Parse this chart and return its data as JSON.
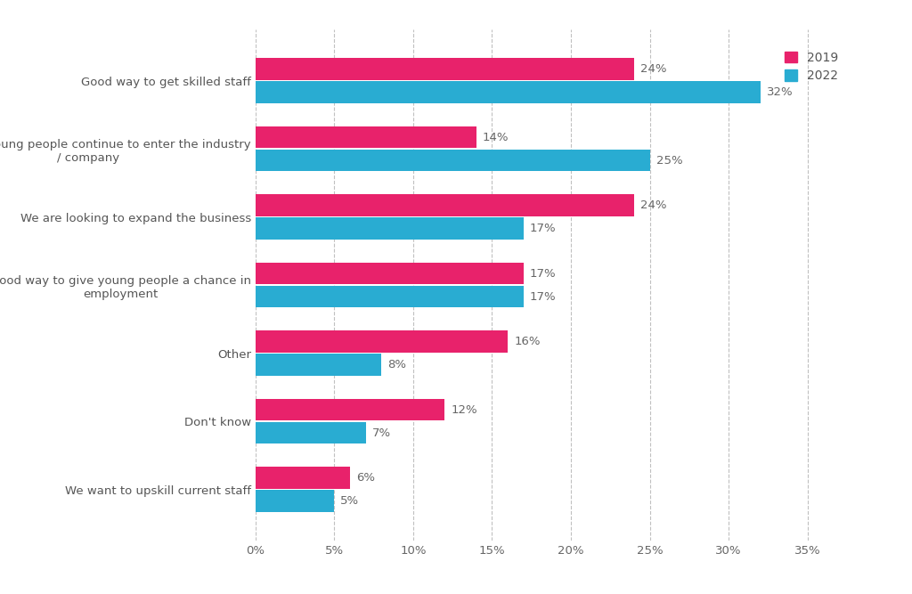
{
  "categories": [
    "Good way to get skilled staff",
    "To ensure young people continue to enter the industry\n/ company",
    "We are looking to expand the business",
    "Good way to give young people a chance in\nemployment",
    "Other",
    "Don't know",
    "We want to upskill current staff"
  ],
  "values_2019": [
    24,
    14,
    24,
    17,
    16,
    12,
    6
  ],
  "values_2022": [
    32,
    25,
    17,
    17,
    8,
    7,
    5
  ],
  "color_2019": "#e8226b",
  "color_2022": "#29acd2",
  "xlim": [
    0,
    37
  ],
  "xticks": [
    0,
    5,
    10,
    15,
    20,
    25,
    30,
    35
  ],
  "xtick_labels": [
    "0%",
    "5%",
    "10%",
    "15%",
    "20%",
    "25%",
    "30%",
    "35%"
  ],
  "bar_height": 0.32,
  "label_fontsize": 9.5,
  "tick_label_fontsize": 9.5,
  "legend_labels": [
    "2019",
    "2022"
  ],
  "background_color": "#ffffff",
  "grid_color": "#c0c0c0"
}
